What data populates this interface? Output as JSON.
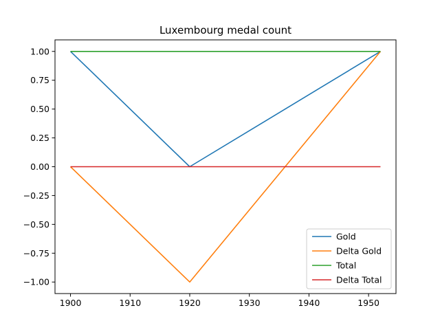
{
  "chart_data": {
    "type": "line",
    "title": "Luxembourg medal count",
    "xlabel": "",
    "ylabel": "",
    "x": [
      1900,
      1920,
      1952
    ],
    "xlim": [
      1897.4,
      1954.6
    ],
    "ylim": [
      -1.1,
      1.1
    ],
    "xticks": [
      1900,
      1910,
      1920,
      1930,
      1940,
      1950
    ],
    "yticks": [
      1.0,
      0.75,
      0.5,
      0.25,
      0.0,
      -0.25,
      -0.5,
      -0.75,
      -1.0
    ],
    "xtick_labels": [
      "1900",
      "1910",
      "1920",
      "1930",
      "1940",
      "1950"
    ],
    "ytick_labels": [
      "1.00",
      "0.75",
      "0.50",
      "0.25",
      "0.00",
      "−0.25",
      "−0.50",
      "−0.75",
      "−1.00"
    ],
    "grid": false,
    "legend_position": "lower-right",
    "series": [
      {
        "name": "Gold",
        "values": [
          1,
          0,
          1
        ],
        "color": "#1f77b4"
      },
      {
        "name": "Delta Gold",
        "values": [
          0,
          -1,
          1
        ],
        "color": "#ff7f0e"
      },
      {
        "name": "Total",
        "values": [
          1,
          1,
          1
        ],
        "color": "#2ca02c"
      },
      {
        "name": "Delta Total",
        "values": [
          0,
          0,
          0
        ],
        "color": "#d62728"
      }
    ]
  }
}
